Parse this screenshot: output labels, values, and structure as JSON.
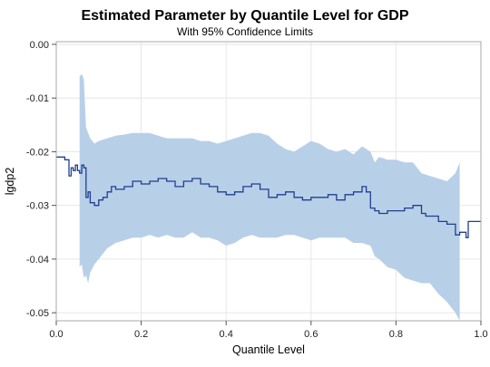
{
  "chart_data": {
    "type": "line",
    "title": "Estimated Parameter by Quantile Level for GDP",
    "subtitle": "With 95% Confidence Limits",
    "xlabel": "Quantile Level",
    "ylabel": "lgdp2",
    "xlim": [
      0.0,
      1.0
    ],
    "ylim": [
      -0.0515,
      0.0005
    ],
    "xticks": [
      "0.0",
      "0.2",
      "0.4",
      "0.6",
      "0.8",
      "1.0"
    ],
    "xtick_values": [
      0.0,
      0.2,
      0.4,
      0.6,
      0.8,
      1.0
    ],
    "yticks": [
      "0.00",
      "-0.01",
      "-0.02",
      "-0.03",
      "-0.04",
      "-0.05"
    ],
    "ytick_values": [
      0.0,
      -0.01,
      -0.02,
      -0.03,
      -0.04,
      -0.05
    ],
    "grid": true,
    "colors": {
      "line": "#1f3f8f",
      "band": "#b8cfe8",
      "grid": "#e6e6e6",
      "frame": "#aaaaaa"
    },
    "series": [
      {
        "type": "line",
        "x": [
          0.0,
          0.02,
          0.03,
          0.035,
          0.04,
          0.045,
          0.05,
          0.055,
          0.06,
          0.065,
          0.07,
          0.075,
          0.08,
          0.09,
          0.1,
          0.11,
          0.12,
          0.13,
          0.14,
          0.16,
          0.18,
          0.2,
          0.22,
          0.24,
          0.26,
          0.28,
          0.3,
          0.32,
          0.34,
          0.36,
          0.38,
          0.4,
          0.42,
          0.44,
          0.46,
          0.48,
          0.5,
          0.52,
          0.54,
          0.56,
          0.58,
          0.6,
          0.62,
          0.64,
          0.66,
          0.68,
          0.7,
          0.72,
          0.73,
          0.74,
          0.75,
          0.76,
          0.78,
          0.8,
          0.82,
          0.84,
          0.86,
          0.87,
          0.88,
          0.9,
          0.92,
          0.94,
          0.95,
          0.96,
          0.965,
          0.97,
          1.0
        ],
        "y": [
          -0.021,
          -0.0215,
          -0.0245,
          -0.023,
          -0.0235,
          -0.0225,
          -0.0235,
          -0.024,
          -0.0225,
          -0.023,
          -0.0285,
          -0.0275,
          -0.0295,
          -0.03,
          -0.029,
          -0.0285,
          -0.0275,
          -0.0265,
          -0.027,
          -0.0265,
          -0.0255,
          -0.026,
          -0.0255,
          -0.025,
          -0.0255,
          -0.0265,
          -0.0255,
          -0.025,
          -0.026,
          -0.0265,
          -0.0275,
          -0.028,
          -0.0275,
          -0.0265,
          -0.026,
          -0.027,
          -0.0285,
          -0.028,
          -0.0275,
          -0.0285,
          -0.029,
          -0.0285,
          -0.0285,
          -0.028,
          -0.029,
          -0.028,
          -0.0275,
          -0.0265,
          -0.0275,
          -0.0305,
          -0.031,
          -0.0315,
          -0.031,
          -0.031,
          -0.0305,
          -0.03,
          -0.0315,
          -0.032,
          -0.032,
          -0.033,
          -0.0335,
          -0.0355,
          -0.035,
          -0.035,
          -0.036,
          -0.033,
          -0.033
        ]
      },
      {
        "type": "band",
        "x": [
          0.055,
          0.06,
          0.065,
          0.07,
          0.075,
          0.08,
          0.09,
          0.1,
          0.12,
          0.14,
          0.16,
          0.18,
          0.2,
          0.22,
          0.24,
          0.26,
          0.28,
          0.3,
          0.32,
          0.34,
          0.36,
          0.38,
          0.4,
          0.42,
          0.44,
          0.46,
          0.48,
          0.5,
          0.52,
          0.54,
          0.56,
          0.58,
          0.6,
          0.62,
          0.64,
          0.66,
          0.68,
          0.7,
          0.72,
          0.74,
          0.75,
          0.76,
          0.78,
          0.8,
          0.82,
          0.84,
          0.86,
          0.88,
          0.9,
          0.92,
          0.94,
          0.95
        ],
        "upper": [
          -0.006,
          -0.0055,
          -0.0065,
          -0.0155,
          -0.0165,
          -0.0175,
          -0.0185,
          -0.018,
          -0.0175,
          -0.017,
          -0.0168,
          -0.0165,
          -0.0165,
          -0.0165,
          -0.017,
          -0.0175,
          -0.0175,
          -0.0175,
          -0.0175,
          -0.018,
          -0.018,
          -0.0185,
          -0.018,
          -0.0175,
          -0.017,
          -0.0165,
          -0.0165,
          -0.017,
          -0.0185,
          -0.0195,
          -0.02,
          -0.019,
          -0.018,
          -0.0185,
          -0.0195,
          -0.02,
          -0.0195,
          -0.0205,
          -0.019,
          -0.02,
          -0.022,
          -0.021,
          -0.0215,
          -0.0215,
          -0.022,
          -0.022,
          -0.024,
          -0.0245,
          -0.025,
          -0.0255,
          -0.024,
          -0.022
        ],
        "lower": [
          -0.0415,
          -0.041,
          -0.0435,
          -0.043,
          -0.0445,
          -0.0425,
          -0.041,
          -0.04,
          -0.038,
          -0.037,
          -0.0365,
          -0.036,
          -0.036,
          -0.0355,
          -0.036,
          -0.0355,
          -0.036,
          -0.036,
          -0.035,
          -0.036,
          -0.036,
          -0.0365,
          -0.0375,
          -0.037,
          -0.036,
          -0.0355,
          -0.036,
          -0.036,
          -0.036,
          -0.0355,
          -0.0355,
          -0.036,
          -0.0365,
          -0.036,
          -0.036,
          -0.036,
          -0.036,
          -0.037,
          -0.037,
          -0.0375,
          -0.0395,
          -0.04,
          -0.0415,
          -0.042,
          -0.0435,
          -0.044,
          -0.0445,
          -0.0445,
          -0.0465,
          -0.048,
          -0.05,
          -0.0515
        ]
      }
    ]
  }
}
